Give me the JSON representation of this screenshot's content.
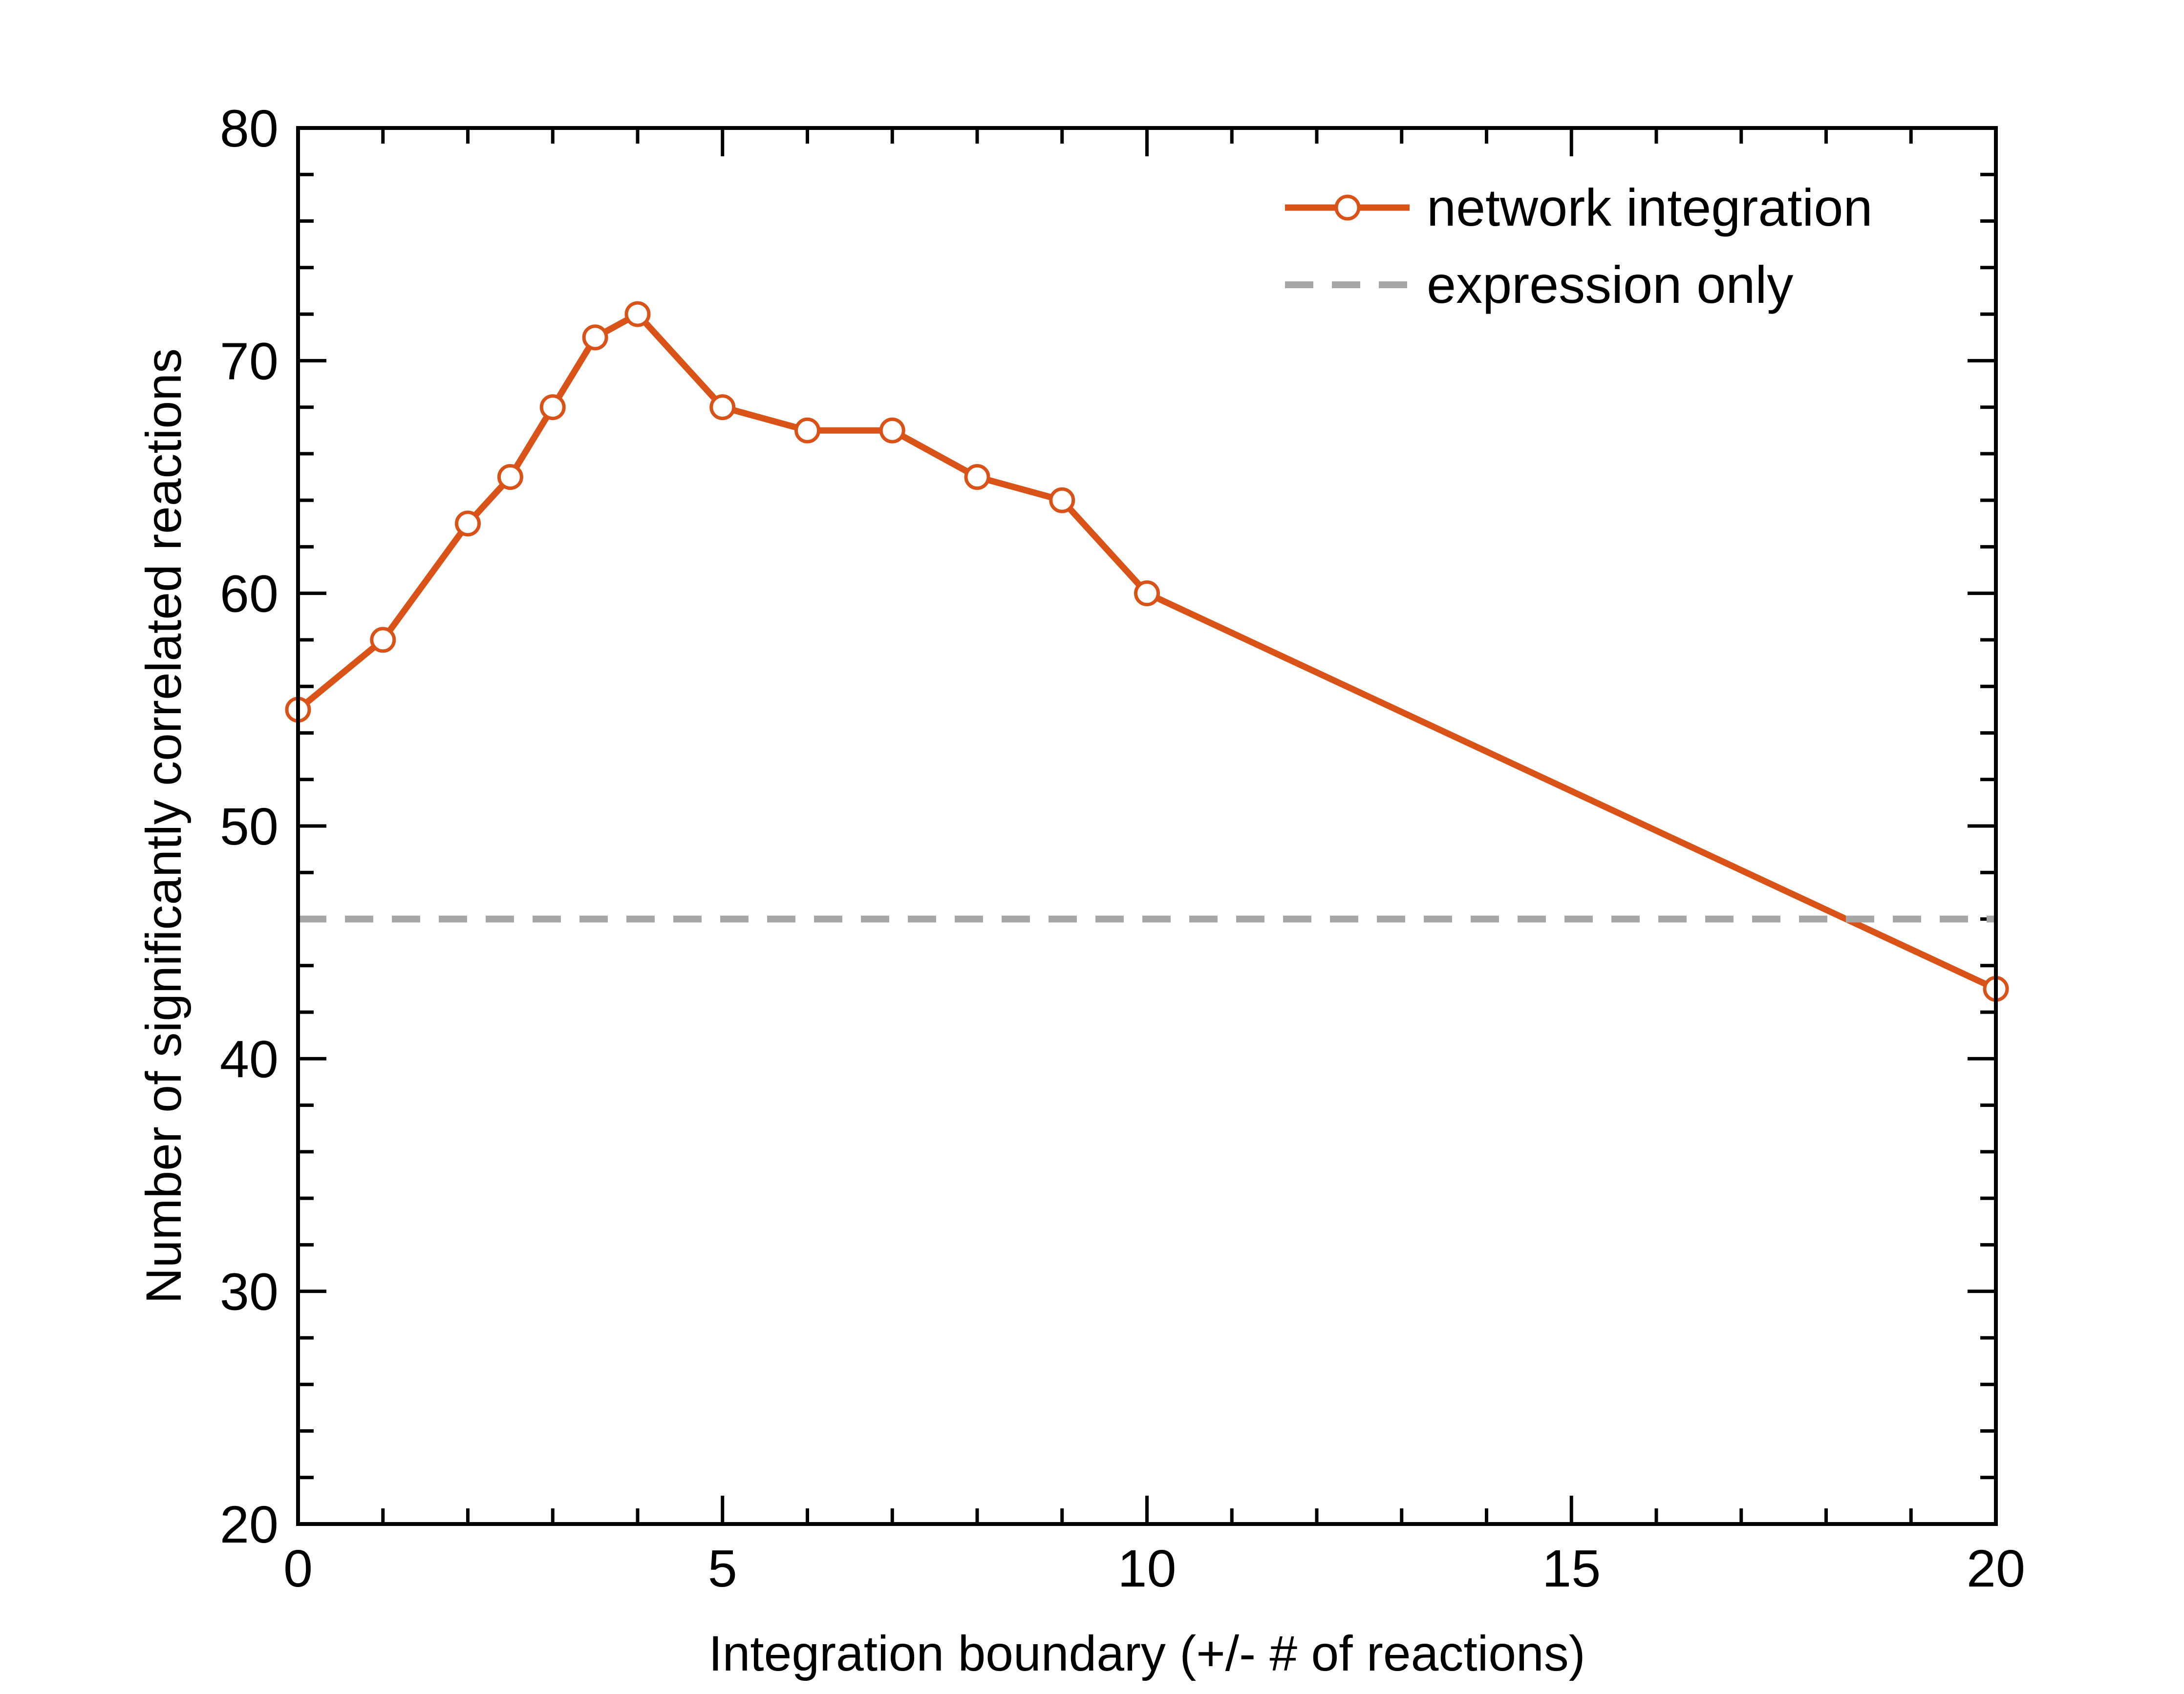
{
  "chart_data": {
    "type": "line",
    "title": "",
    "xlabel": "Integration boundary (+/- # of reactions)",
    "ylabel": "Number of significantly correlated reactions",
    "xlim": [
      0,
      20
    ],
    "ylim": [
      20,
      80
    ],
    "xticks": [
      0,
      5,
      10,
      15,
      20
    ],
    "yticks": [
      20,
      30,
      40,
      50,
      60,
      70,
      80
    ],
    "x_minor_step": 1,
    "y_minor_step": 2,
    "grid": false,
    "legend_position": "top-right",
    "series": [
      {
        "name": "network integration",
        "color": "#d95319",
        "marker": "open-circle",
        "line_style": "solid",
        "x": [
          0,
          1,
          2,
          2.5,
          3,
          3.5,
          4,
          5,
          6,
          7,
          8,
          9,
          10,
          20
        ],
        "y": [
          55,
          58,
          63,
          65,
          68,
          71,
          72,
          68,
          67,
          67,
          65,
          64,
          60,
          43
        ]
      },
      {
        "name": "expression only",
        "color": "#a6a6a6",
        "marker": "none",
        "line_style": "dashed",
        "x": [
          0,
          20
        ],
        "y": [
          46,
          46
        ]
      }
    ]
  }
}
